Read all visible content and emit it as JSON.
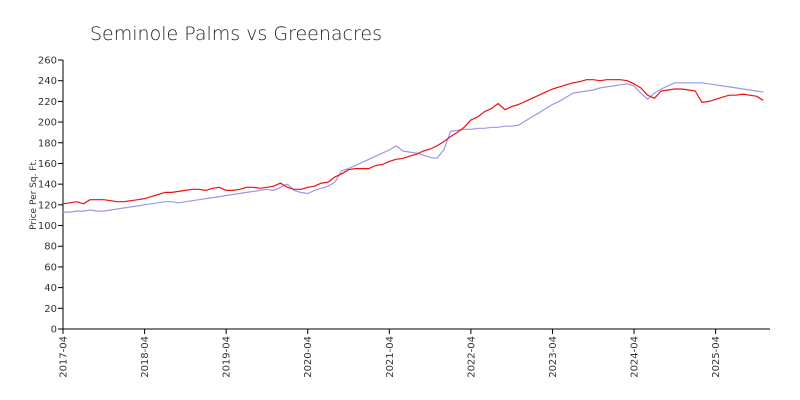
{
  "chart_data": {
    "type": "line",
    "title": "Seminole Palms vs Greenacres",
    "xlabel": "",
    "ylabel": "Price Per Sq. Ft.",
    "ylim": [
      0,
      260
    ],
    "yticks": [
      0,
      20,
      40,
      60,
      80,
      100,
      120,
      140,
      160,
      180,
      200,
      220,
      240,
      260
    ],
    "xlim": [
      "2017-04",
      "2025-12"
    ],
    "xticks": [
      "2017-04",
      "2018-04",
      "2019-04",
      "2020-04",
      "2021-04",
      "2022-04",
      "2023-04",
      "2024-04",
      "2025-04"
    ],
    "grid": false,
    "legend": "none",
    "series": [
      {
        "color": "#9999e6",
        "points": [
          [
            "2017-04",
            113
          ],
          [
            "2017-05",
            113
          ],
          [
            "2017-06",
            114
          ],
          [
            "2017-07",
            114
          ],
          [
            "2017-08",
            115
          ],
          [
            "2017-09",
            114
          ],
          [
            "2017-10",
            114
          ],
          [
            "2017-11",
            115
          ],
          [
            "2017-12",
            116
          ],
          [
            "2018-01",
            117
          ],
          [
            "2018-02",
            118
          ],
          [
            "2018-03",
            119
          ],
          [
            "2018-04",
            120
          ],
          [
            "2018-05",
            121
          ],
          [
            "2018-06",
            122
          ],
          [
            "2018-07",
            123
          ],
          [
            "2018-08",
            123
          ],
          [
            "2018-09",
            122
          ],
          [
            "2018-10",
            123
          ],
          [
            "2018-11",
            124
          ],
          [
            "2018-12",
            125
          ],
          [
            "2019-01",
            126
          ],
          [
            "2019-02",
            127
          ],
          [
            "2019-03",
            128
          ],
          [
            "2019-04",
            129
          ],
          [
            "2019-05",
            130
          ],
          [
            "2019-06",
            131
          ],
          [
            "2019-07",
            132
          ],
          [
            "2019-08",
            133
          ],
          [
            "2019-09",
            134
          ],
          [
            "2019-10",
            135
          ],
          [
            "2019-11",
            134
          ],
          [
            "2019-12",
            137
          ],
          [
            "2020-01",
            140
          ],
          [
            "2020-02",
            134
          ],
          [
            "2020-03",
            132
          ],
          [
            "2020-04",
            131
          ],
          [
            "2020-05",
            134
          ],
          [
            "2020-06",
            136
          ],
          [
            "2020-07",
            138
          ],
          [
            "2020-08",
            142
          ],
          [
            "2020-09",
            153
          ],
          [
            "2020-10",
            155
          ],
          [
            "2020-11",
            158
          ],
          [
            "2020-12",
            161
          ],
          [
            "2021-01",
            164
          ],
          [
            "2021-02",
            167
          ],
          [
            "2021-03",
            170
          ],
          [
            "2021-04",
            173
          ],
          [
            "2021-05",
            177
          ],
          [
            "2021-06",
            172
          ],
          [
            "2021-07",
            171
          ],
          [
            "2021-08",
            170
          ],
          [
            "2021-09",
            168
          ],
          [
            "2021-10",
            166
          ],
          [
            "2021-11",
            165
          ],
          [
            "2021-12",
            173
          ],
          [
            "2022-01",
            191
          ],
          [
            "2022-02",
            192
          ],
          [
            "2022-03",
            193
          ],
          [
            "2022-04",
            193
          ],
          [
            "2022-05",
            194
          ],
          [
            "2022-06",
            194
          ],
          [
            "2022-07",
            195
          ],
          [
            "2022-08",
            195
          ],
          [
            "2022-09",
            196
          ],
          [
            "2022-10",
            196
          ],
          [
            "2022-11",
            197
          ],
          [
            "2022-12",
            201
          ],
          [
            "2023-01",
            205
          ],
          [
            "2023-02",
            209
          ],
          [
            "2023-03",
            213
          ],
          [
            "2023-04",
            217
          ],
          [
            "2023-05",
            220
          ],
          [
            "2023-06",
            224
          ],
          [
            "2023-07",
            228
          ],
          [
            "2023-08",
            229
          ],
          [
            "2023-09",
            230
          ],
          [
            "2023-10",
            231
          ],
          [
            "2023-11",
            233
          ],
          [
            "2023-12",
            234
          ],
          [
            "2024-01",
            235
          ],
          [
            "2024-02",
            236
          ],
          [
            "2024-03",
            237
          ],
          [
            "2024-04",
            235
          ],
          [
            "2024-05",
            228
          ],
          [
            "2024-06",
            222
          ],
          [
            "2024-07",
            228
          ],
          [
            "2024-08",
            232
          ],
          [
            "2024-09",
            235
          ],
          [
            "2024-10",
            238
          ],
          [
            "2024-11",
            238
          ],
          [
            "2024-12",
            238
          ],
          [
            "2025-01",
            238
          ],
          [
            "2025-02",
            238
          ],
          [
            "2025-03",
            237
          ],
          [
            "2025-04",
            236
          ],
          [
            "2025-05",
            235
          ],
          [
            "2025-06",
            234
          ],
          [
            "2025-07",
            233
          ],
          [
            "2025-08",
            232
          ],
          [
            "2025-09",
            231
          ],
          [
            "2025-10",
            230
          ],
          [
            "2025-11",
            229
          ]
        ]
      },
      {
        "color": "#ee1111",
        "points": [
          [
            "2017-04",
            121
          ],
          [
            "2017-05",
            122
          ],
          [
            "2017-06",
            123
          ],
          [
            "2017-07",
            121
          ],
          [
            "2017-08",
            125
          ],
          [
            "2017-09",
            125
          ],
          [
            "2017-10",
            125
          ],
          [
            "2017-11",
            124
          ],
          [
            "2017-12",
            123
          ],
          [
            "2018-01",
            123
          ],
          [
            "2018-02",
            124
          ],
          [
            "2018-03",
            125
          ],
          [
            "2018-04",
            126
          ],
          [
            "2018-05",
            128
          ],
          [
            "2018-06",
            130
          ],
          [
            "2018-07",
            132
          ],
          [
            "2018-08",
            132
          ],
          [
            "2018-09",
            133
          ],
          [
            "2018-10",
            134
          ],
          [
            "2018-11",
            135
          ],
          [
            "2018-12",
            135
          ],
          [
            "2019-01",
            134
          ],
          [
            "2019-02",
            136
          ],
          [
            "2019-03",
            137
          ],
          [
            "2019-04",
            134
          ],
          [
            "2019-05",
            134
          ],
          [
            "2019-06",
            135
          ],
          [
            "2019-07",
            137
          ],
          [
            "2019-08",
            137
          ],
          [
            "2019-09",
            136
          ],
          [
            "2019-10",
            137
          ],
          [
            "2019-11",
            138
          ],
          [
            "2019-12",
            141
          ],
          [
            "2020-01",
            137
          ],
          [
            "2020-02",
            135
          ],
          [
            "2020-03",
            135
          ],
          [
            "2020-04",
            137
          ],
          [
            "2020-05",
            138
          ],
          [
            "2020-06",
            141
          ],
          [
            "2020-07",
            142
          ],
          [
            "2020-08",
            147
          ],
          [
            "2020-09",
            150
          ],
          [
            "2020-10",
            154
          ],
          [
            "2020-11",
            155
          ],
          [
            "2020-12",
            155
          ],
          [
            "2021-01",
            155
          ],
          [
            "2021-02",
            158
          ],
          [
            "2021-03",
            159
          ],
          [
            "2021-04",
            162
          ],
          [
            "2021-05",
            164
          ],
          [
            "2021-06",
            165
          ],
          [
            "2021-07",
            167
          ],
          [
            "2021-08",
            169
          ],
          [
            "2021-09",
            172
          ],
          [
            "2021-10",
            174
          ],
          [
            "2021-11",
            177
          ],
          [
            "2021-12",
            181
          ],
          [
            "2022-01",
            186
          ],
          [
            "2022-02",
            190
          ],
          [
            "2022-03",
            195
          ],
          [
            "2022-04",
            202
          ],
          [
            "2022-05",
            205
          ],
          [
            "2022-06",
            210
          ],
          [
            "2022-07",
            213
          ],
          [
            "2022-08",
            218
          ],
          [
            "2022-09",
            212
          ],
          [
            "2022-10",
            215
          ],
          [
            "2022-11",
            217
          ],
          [
            "2022-12",
            220
          ],
          [
            "2023-01",
            223
          ],
          [
            "2023-02",
            226
          ],
          [
            "2023-03",
            229
          ],
          [
            "2023-04",
            232
          ],
          [
            "2023-05",
            234
          ],
          [
            "2023-06",
            236
          ],
          [
            "2023-07",
            238
          ],
          [
            "2023-08",
            239
          ],
          [
            "2023-09",
            241
          ],
          [
            "2023-10",
            241
          ],
          [
            "2023-11",
            240
          ],
          [
            "2023-12",
            241
          ],
          [
            "2024-01",
            241
          ],
          [
            "2024-02",
            241
          ],
          [
            "2024-03",
            240
          ],
          [
            "2024-04",
            237
          ],
          [
            "2024-05",
            233
          ],
          [
            "2024-06",
            226
          ],
          [
            "2024-07",
            223
          ],
          [
            "2024-08",
            230
          ],
          [
            "2024-09",
            231
          ],
          [
            "2024-10",
            232
          ],
          [
            "2024-11",
            232
          ],
          [
            "2024-12",
            231
          ],
          [
            "2025-01",
            230
          ],
          [
            "2025-02",
            219
          ],
          [
            "2025-03",
            220
          ],
          [
            "2025-04",
            222
          ],
          [
            "2025-05",
            224
          ],
          [
            "2025-06",
            226
          ],
          [
            "2025-07",
            226
          ],
          [
            "2025-08",
            227
          ],
          [
            "2025-09",
            226
          ],
          [
            "2025-10",
            225
          ],
          [
            "2025-11",
            221
          ]
        ]
      }
    ]
  }
}
